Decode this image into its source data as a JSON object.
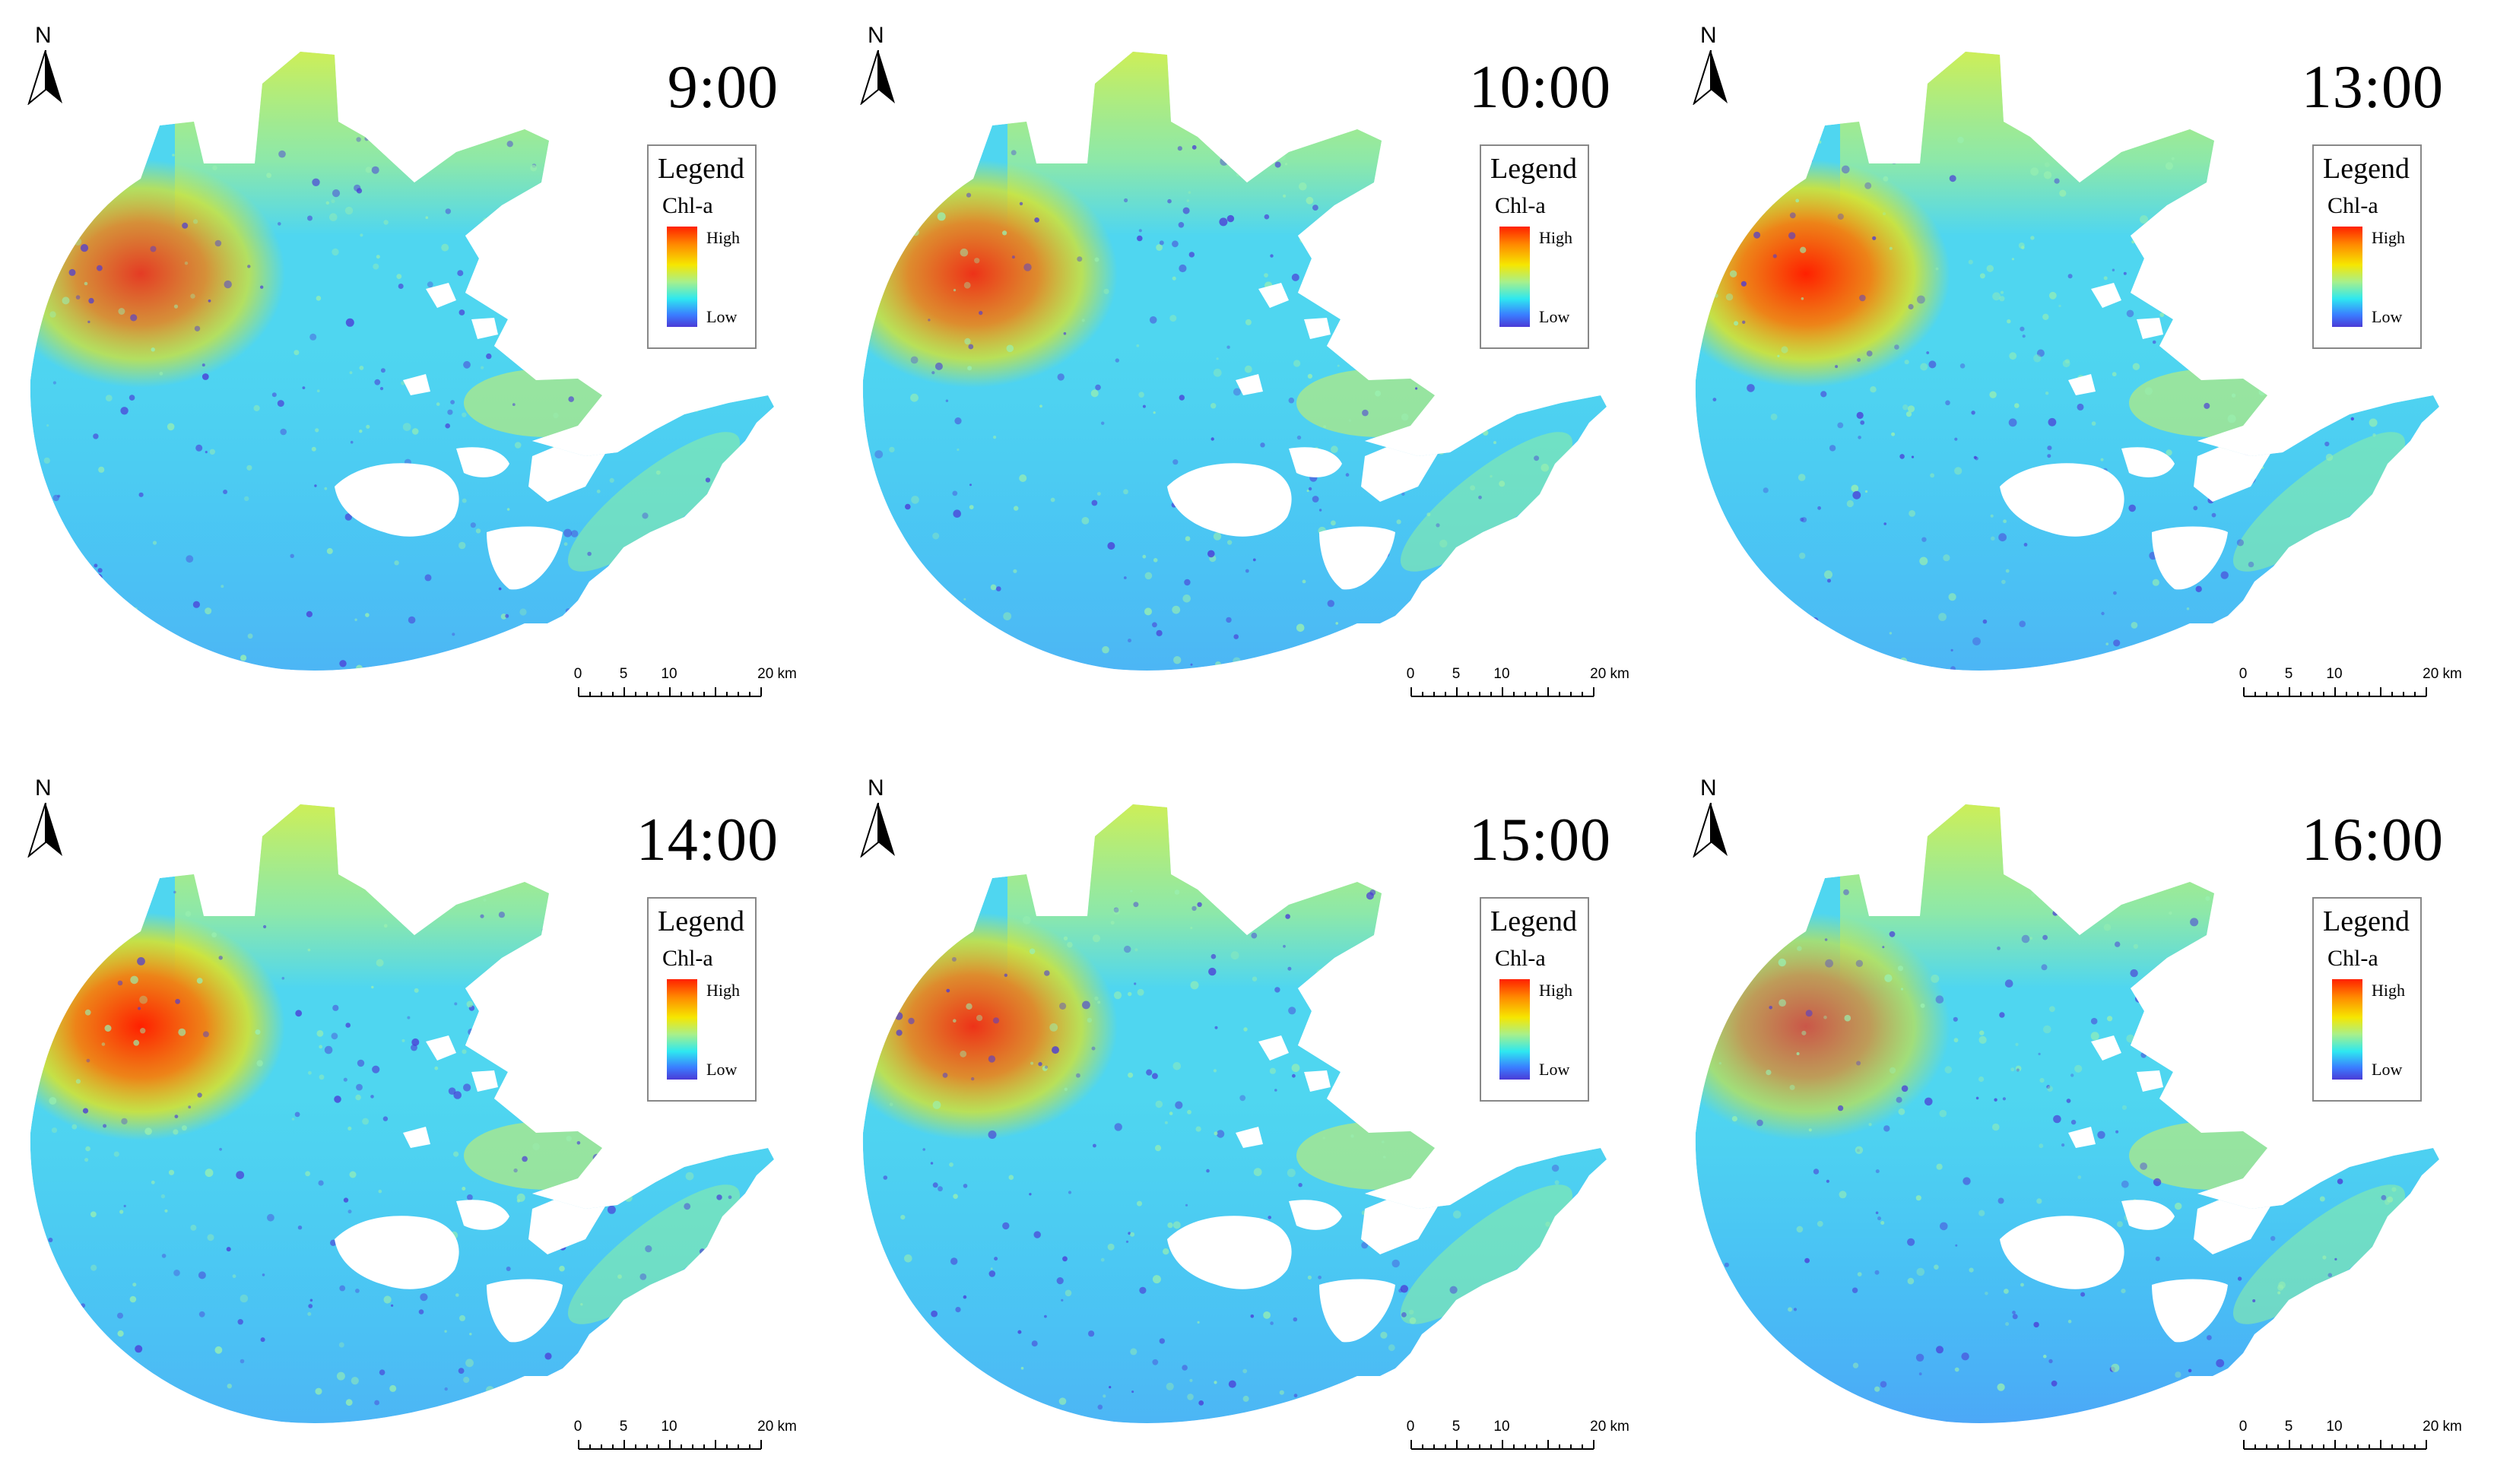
{
  "figure": {
    "panels": [
      {
        "time": "9:00",
        "legend_title": "Legend",
        "variable": "Chl-a",
        "high_label": "High",
        "low_label": "Low",
        "north_label": "N",
        "scale": {
          "labels": [
            "0",
            "5",
            "10",
            "20 km"
          ]
        },
        "bloom_intensity": 0.85,
        "low_intensity": 0.35
      },
      {
        "time": "10:00",
        "legend_title": "Legend",
        "variable": "Chl-a",
        "high_label": "High",
        "low_label": "Low",
        "north_label": "N",
        "scale": {
          "labels": [
            "0",
            "5",
            "10",
            "20 km"
          ]
        },
        "bloom_intensity": 0.9,
        "low_intensity": 0.35
      },
      {
        "time": "13:00",
        "legend_title": "Legend",
        "variable": "Chl-a",
        "high_label": "High",
        "low_label": "Low",
        "north_label": "N",
        "scale": {
          "labels": [
            "0",
            "5",
            "10",
            "20 km"
          ]
        },
        "bloom_intensity": 1.0,
        "low_intensity": 0.35
      },
      {
        "time": "14:00",
        "legend_title": "Legend",
        "variable": "Chl-a",
        "high_label": "High",
        "low_label": "Low",
        "north_label": "N",
        "scale": {
          "labels": [
            "0",
            "5",
            "10",
            "20 km"
          ]
        },
        "bloom_intensity": 1.0,
        "low_intensity": 0.35
      },
      {
        "time": "15:00",
        "legend_title": "Legend",
        "variable": "Chl-a",
        "high_label": "High",
        "low_label": "Low",
        "north_label": "N",
        "scale": {
          "labels": [
            "0",
            "5",
            "10",
            "20 km"
          ]
        },
        "bloom_intensity": 0.9,
        "low_intensity": 0.35
      },
      {
        "time": "16:00",
        "legend_title": "Legend",
        "variable": "Chl-a",
        "high_label": "High",
        "low_label": "Low",
        "north_label": "N",
        "scale": {
          "labels": [
            "0",
            "5",
            "10",
            "20 km"
          ]
        },
        "bloom_intensity": 0.7,
        "low_intensity": 0.5
      }
    ]
  },
  "colors": {
    "high": "#ff2000",
    "mid_high": "#f6e600",
    "mid": "#a8f08a",
    "low_mid": "#2ee8f0",
    "low": "#4b3bd6",
    "background": "#ffffff",
    "lake_base": "#4fd6f0"
  }
}
